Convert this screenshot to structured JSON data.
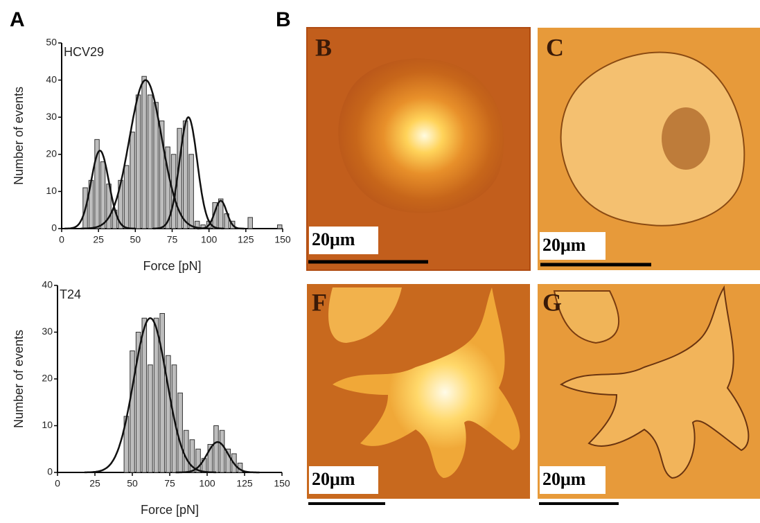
{
  "panel_labels": [
    "A",
    "B"
  ],
  "chart_data": [
    {
      "type": "histogram",
      "title": "HCV29",
      "x_label": "Force [pN]",
      "y_label": "Number of events",
      "bins": [
        14,
        18,
        22,
        26,
        30,
        34,
        38,
        42,
        46,
        50,
        54,
        58,
        62,
        66,
        70,
        74,
        78,
        82,
        86,
        90,
        94,
        98,
        102,
        106,
        110,
        114,
        118,
        122,
        126,
        130,
        134,
        138,
        142,
        146,
        150
      ],
      "values": [
        11,
        13,
        24,
        18,
        12,
        5,
        13,
        17,
        26,
        36,
        41,
        36,
        34,
        29,
        22,
        20,
        27,
        29,
        20,
        2,
        1,
        2,
        7,
        8,
        4,
        2,
        0,
        0,
        3,
        0,
        0,
        0,
        0,
        1
      ],
      "color": "#bdbdbd",
      "fits": [
        {
          "amplitude": 21,
          "mean": 26,
          "sd": 6
        },
        {
          "amplitude": 40,
          "mean": 57,
          "sd": 11
        },
        {
          "amplitude": 30,
          "mean": 86,
          "sd": 6
        },
        {
          "amplitude": 7.5,
          "mean": 108,
          "sd": 4
        }
      ],
      "xlim": [
        0,
        150
      ],
      "xticks": [
        0,
        25,
        50,
        75,
        100,
        125,
        150
      ],
      "ylim": [
        0,
        50
      ],
      "yticks": [
        0,
        10,
        20,
        30,
        40,
        50
      ]
    },
    {
      "type": "histogram",
      "title": "T24",
      "x_label": "Force [pN]",
      "y_label": "Number of events",
      "bins": [
        44,
        48,
        52,
        56,
        60,
        64,
        68,
        72,
        76,
        80,
        84,
        88,
        92,
        96,
        100,
        104,
        108,
        112,
        116,
        120,
        124
      ],
      "values": [
        12,
        26,
        30,
        33,
        23,
        33,
        34,
        25,
        23,
        17,
        9,
        7,
        5,
        3,
        6,
        10,
        9,
        5,
        4,
        2
      ],
      "color": "#bdbdbd",
      "fits": [
        {
          "amplitude": 33,
          "mean": 62,
          "sd": 11
        },
        {
          "amplitude": 6.5,
          "mean": 107,
          "sd": 7
        }
      ],
      "xlim": [
        0,
        150
      ],
      "xticks": [
        0,
        25,
        50,
        75,
        100,
        125,
        150
      ],
      "ylim": [
        0,
        40
      ],
      "yticks": [
        0,
        10,
        20,
        30,
        40
      ]
    }
  ],
  "images": [
    {
      "label": "B",
      "scale_bar": "20μm"
    },
    {
      "label": "C",
      "scale_bar": "20μm"
    },
    {
      "label": "F",
      "scale_bar": "20μm"
    },
    {
      "label": "G",
      "scale_bar": "20μm"
    }
  ]
}
